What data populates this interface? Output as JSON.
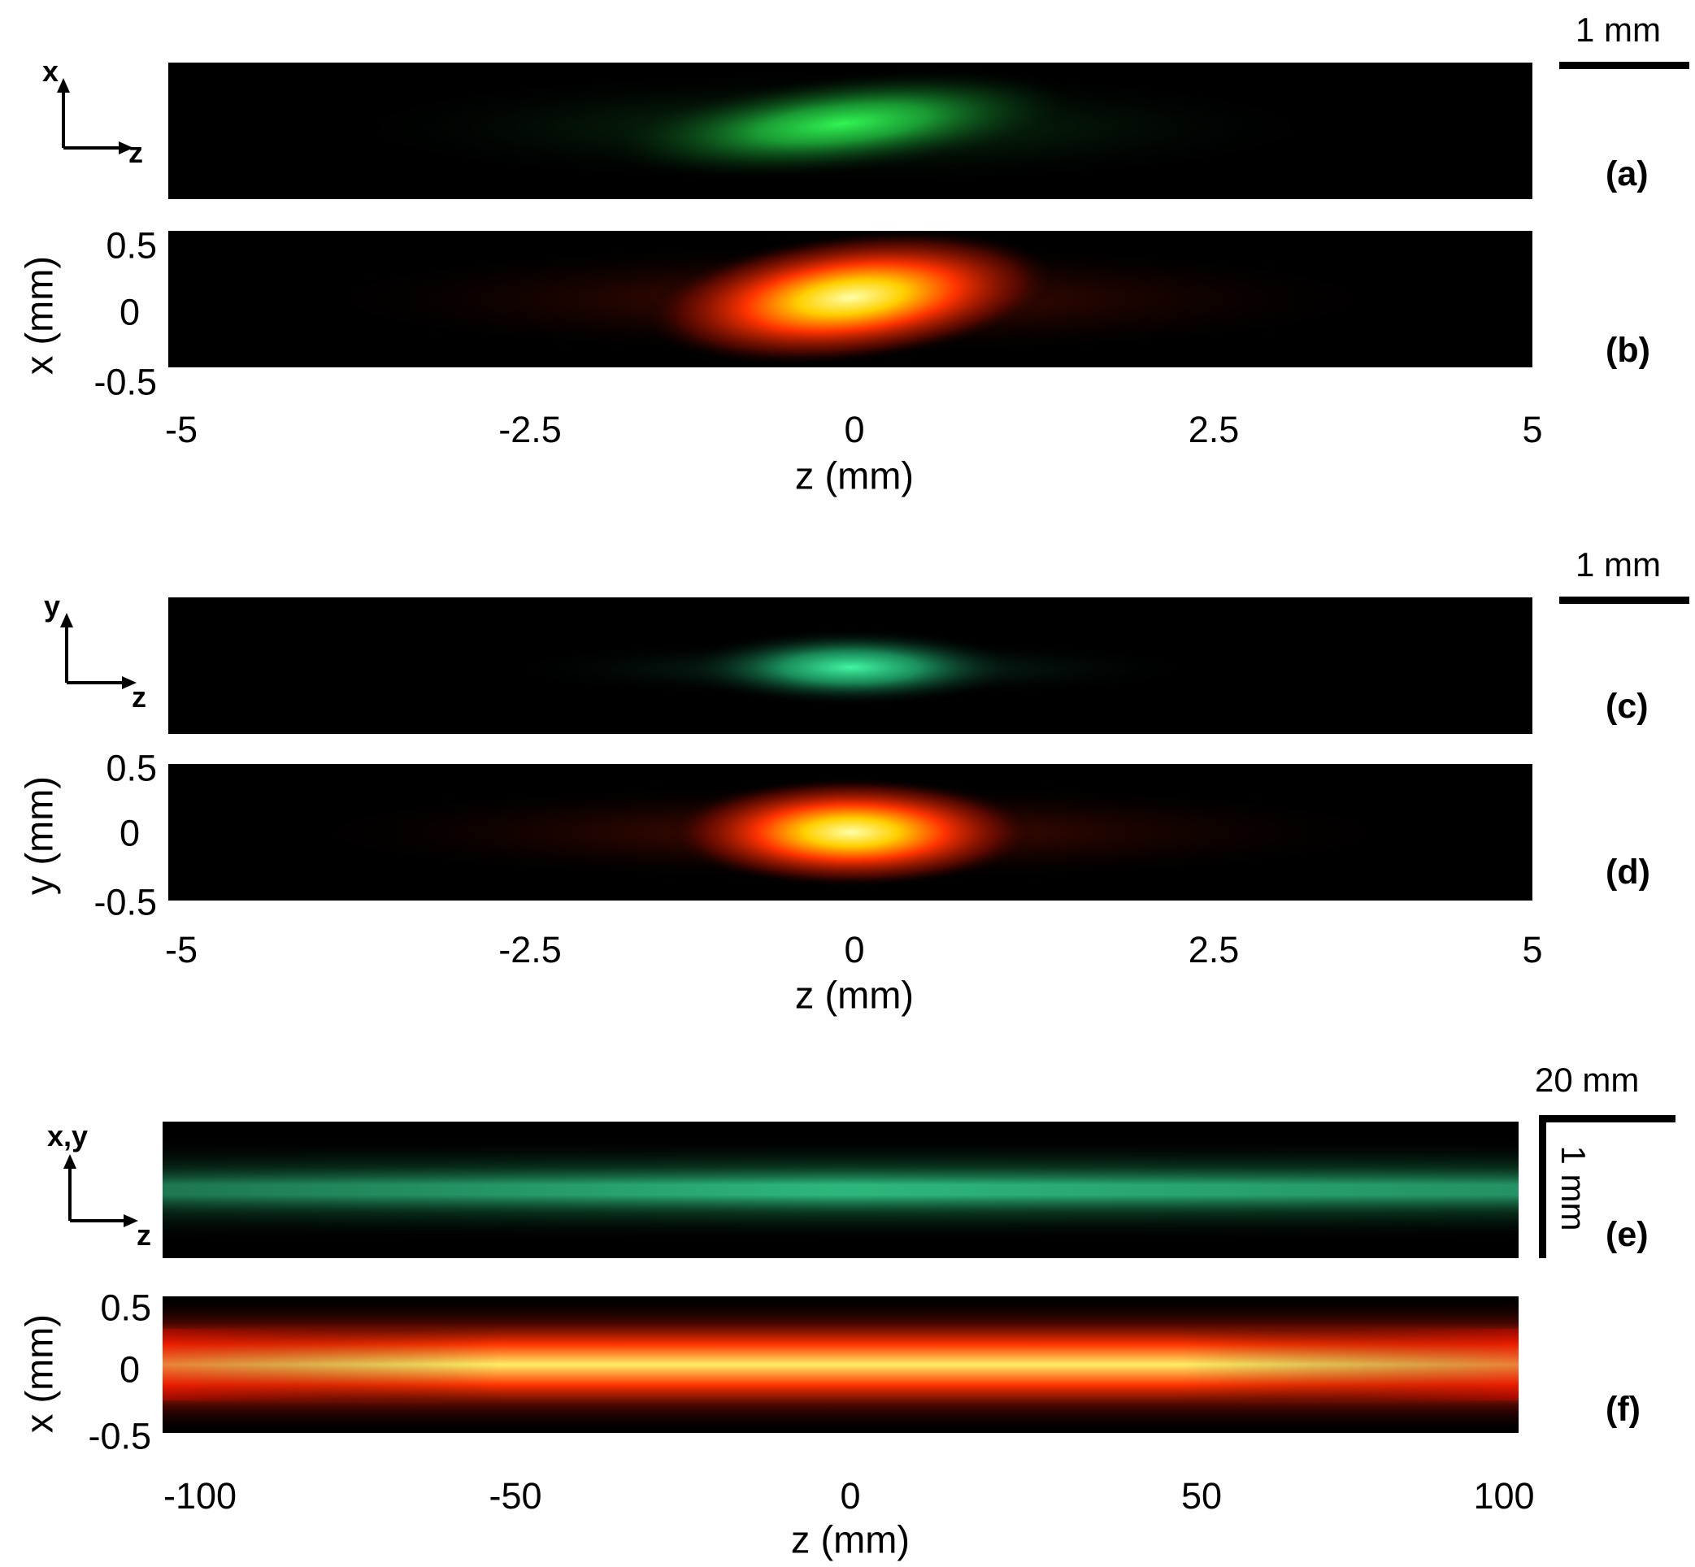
{
  "figure": {
    "group1": {
      "panel_a": {
        "label": "(a)"
      },
      "panel_b": {
        "label": "(b)"
      },
      "scale_bar": "1 mm",
      "axes_indicator": {
        "vertical": "x",
        "horizontal": "z"
      },
      "ylabel": "x (mm)",
      "xlabel": "z (mm)",
      "yticks": [
        "0.5",
        "0",
        "-0.5"
      ],
      "xticks": [
        "-5",
        "-2.5",
        "0",
        "2.5",
        "5"
      ]
    },
    "group2": {
      "panel_c": {
        "label": "(c)"
      },
      "panel_d": {
        "label": "(d)"
      },
      "scale_bar": "1 mm",
      "axes_indicator": {
        "vertical": "y",
        "horizontal": "z"
      },
      "ylabel": "y (mm)",
      "xlabel": "z (mm)",
      "yticks": [
        "0.5",
        "0",
        "-0.5"
      ],
      "xticks": [
        "-5",
        "-2.5",
        "0",
        "2.5",
        "5"
      ]
    },
    "group3": {
      "panel_e": {
        "label": "(e)"
      },
      "panel_f": {
        "label": "(f)"
      },
      "scale_bar_h": "20 mm",
      "scale_bar_v": "1 mm",
      "axes_indicator": {
        "vertical": "x,y",
        "horizontal": "z"
      },
      "ylabel": "x (mm)",
      "xlabel": "z (mm)",
      "yticks": [
        "0.5",
        "0",
        "-0.5"
      ],
      "xticks": [
        "-100",
        "-50",
        "0",
        "50",
        "100"
      ]
    },
    "colors": {
      "background": "#000000",
      "measured_green": "#33ff66",
      "measured_teal": "#33ffaa",
      "sim_red": "#ff2200",
      "sim_yellow": "#ffff99"
    }
  }
}
